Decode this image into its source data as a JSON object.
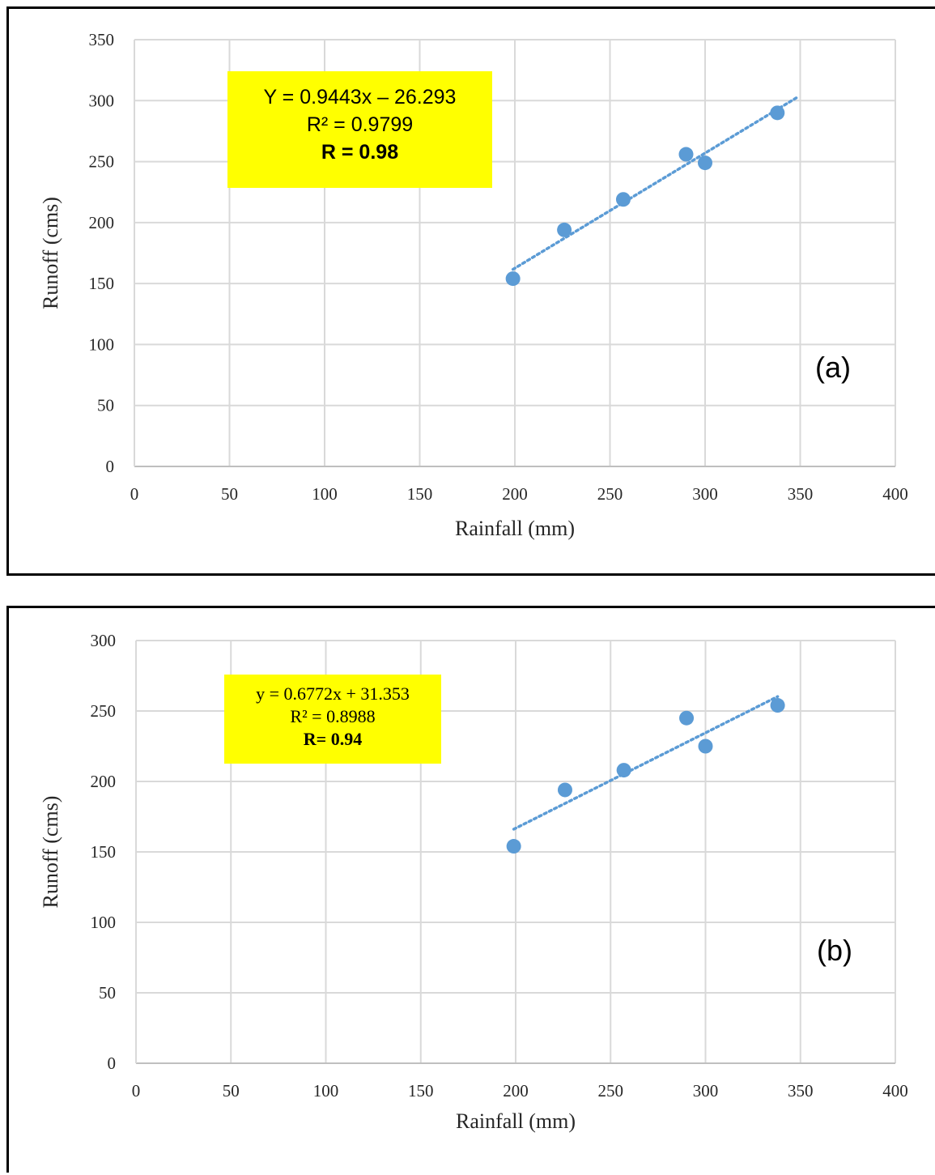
{
  "colors": {
    "marker": "#5b9bd5",
    "trendline": "#5b9bd5",
    "grid": "#d9d9d9",
    "annotation_bg": "#ffff00"
  },
  "chart_data": [
    {
      "type": "scatter",
      "xlabel": "Rainfall (mm)",
      "ylabel": "Runoff (cms)",
      "xlim": [
        0,
        400
      ],
      "ylim": [
        0,
        350
      ],
      "xticks": [
        "0",
        "50",
        "100",
        "150",
        "200",
        "250",
        "300",
        "350",
        "400"
      ],
      "yticks": [
        "0",
        "50",
        "100",
        "150",
        "200",
        "250",
        "300",
        "350"
      ],
      "grid": true,
      "series": [
        {
          "x": [
            199,
            226,
            257,
            290,
            300,
            338
          ],
          "y": [
            154,
            194,
            219,
            256,
            249,
            290
          ]
        }
      ],
      "trendline": {
        "type": "linear",
        "slope": 0.9443,
        "intercept": -26.293,
        "x_range": [
          199,
          348
        ]
      },
      "annotation": {
        "equation": "Y = 0.9443x – 26.293",
        "r2": "R² = 0.9799",
        "r": "R = 0.98"
      },
      "panel_label": "(a)"
    },
    {
      "type": "scatter",
      "xlabel": "Rainfall (mm)",
      "ylabel": "Runoff (cms)",
      "xlim": [
        0,
        400
      ],
      "ylim": [
        0,
        300
      ],
      "xticks": [
        "0",
        "50",
        "100",
        "150",
        "200",
        "250",
        "300",
        "350",
        "400"
      ],
      "yticks": [
        "0",
        "50",
        "100",
        "150",
        "200",
        "250",
        "300"
      ],
      "grid": true,
      "series": [
        {
          "x": [
            199,
            226,
            257,
            290,
            300,
            338
          ],
          "y": [
            154,
            194,
            208,
            245,
            225,
            254
          ]
        }
      ],
      "trendline": {
        "type": "linear",
        "slope": 0.6772,
        "intercept": 31.353,
        "x_range": [
          199,
          338
        ]
      },
      "annotation": {
        "equation": "y = 0.6772x + 31.353",
        "r2": "R² = 0.8988",
        "r": "R= 0.94"
      },
      "panel_label": "(b)"
    }
  ]
}
